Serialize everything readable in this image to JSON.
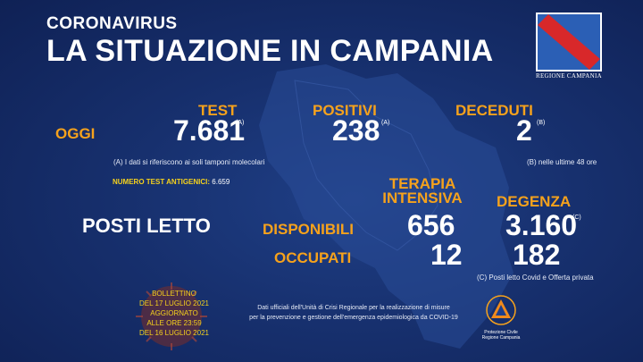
{
  "header": {
    "subtitle": "CORONAVIRUS",
    "title": "LA SITUAZIONE IN CAMPANIA"
  },
  "logo": {
    "text": "REGIONE CAMPANIA"
  },
  "today": {
    "label": "OGGI",
    "test": {
      "heading": "TEST",
      "value": "7.681",
      "marker": "(A)"
    },
    "positive": {
      "heading": "POSITIVI",
      "value": "238",
      "marker": "(A)"
    },
    "deaths": {
      "heading": "DECEDUTI",
      "value": "2",
      "marker": "(B)"
    }
  },
  "notes": {
    "a": "(A) I dati si riferiscono ai soli tamponi molecolari",
    "b": "(B) nelle ultime 48 ore",
    "c": "(C) Posti letto Covid e Offerta privata"
  },
  "antigen": {
    "label": "NUMERO TEST ANTIGENICI:",
    "value": "6.659"
  },
  "beds": {
    "label": "POSTI LETTO",
    "available_label": "DISPONIBILI",
    "occupied_label": "OCCUPATI",
    "icu": {
      "heading_line1": "TERAPIA",
      "heading_line2": "INTENSIVA",
      "available": "656",
      "occupied": "12"
    },
    "ward": {
      "heading": "DEGENZA",
      "available": "3.160",
      "marker": "(C)",
      "occupied": "182"
    }
  },
  "bulletin": {
    "line1": "BOLLETTINO",
    "line2": "DEL 17 LUGLIO 2021",
    "line3": "AGGIORNATO",
    "line4": "ALLE ORE 23:59",
    "line5": "DEL 16 LUGLIO 2021"
  },
  "official": {
    "line1": "Dati ufficiali dell'Unità di Crisi Regionale per la realizzazione di misure",
    "line2": "per la prevenzione e gestione dell'emergenza epidemiologica da COVID-19"
  },
  "protezione": {
    "line1": "Protezione Civile",
    "line2": "Regione Campania"
  },
  "colors": {
    "accent": "#f6a21c",
    "background": "#17306e",
    "bulletin": "#f6d21c"
  }
}
